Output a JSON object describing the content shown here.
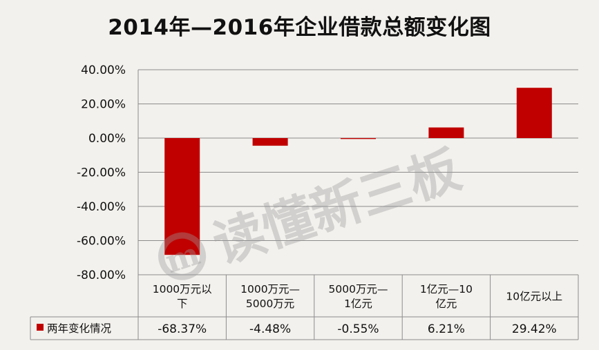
{
  "chart_data": {
    "type": "bar",
    "title": "2014年—2016年企业借款总额变化图",
    "categories": [
      [
        "1000万元以",
        "下"
      ],
      [
        "1000万元—",
        "5000万元"
      ],
      [
        "5000万元—",
        "1亿元"
      ],
      [
        "1亿元—10",
        "亿元"
      ],
      [
        "10亿元以上"
      ]
    ],
    "series": [
      {
        "name": "两年变化情况",
        "values": [
          -68.37,
          -4.48,
          -0.55,
          6.21,
          29.42
        ],
        "value_labels": [
          "-68.37%",
          "-4.48%",
          "-0.55%",
          "6.21%",
          "29.42%"
        ],
        "color": "#c00000"
      }
    ],
    "ylim": [
      -80,
      40
    ],
    "yticks": [
      40,
      20,
      0,
      -20,
      -40,
      -60,
      -80
    ],
    "ytick_labels": [
      "40.00%",
      "20.00%",
      "0.00%",
      "-20.00%",
      "-40.00%",
      "-60.00%",
      "-80.00%"
    ],
    "grid": true,
    "data_table": true,
    "legend": "data-table-left"
  },
  "watermark": {
    "text": "读懂新三板",
    "logo_letter": "m"
  },
  "colors": {
    "bar": "#c00000",
    "grid": "#8c8c8c",
    "background": "#f3f1ed",
    "text": "#111111"
  }
}
